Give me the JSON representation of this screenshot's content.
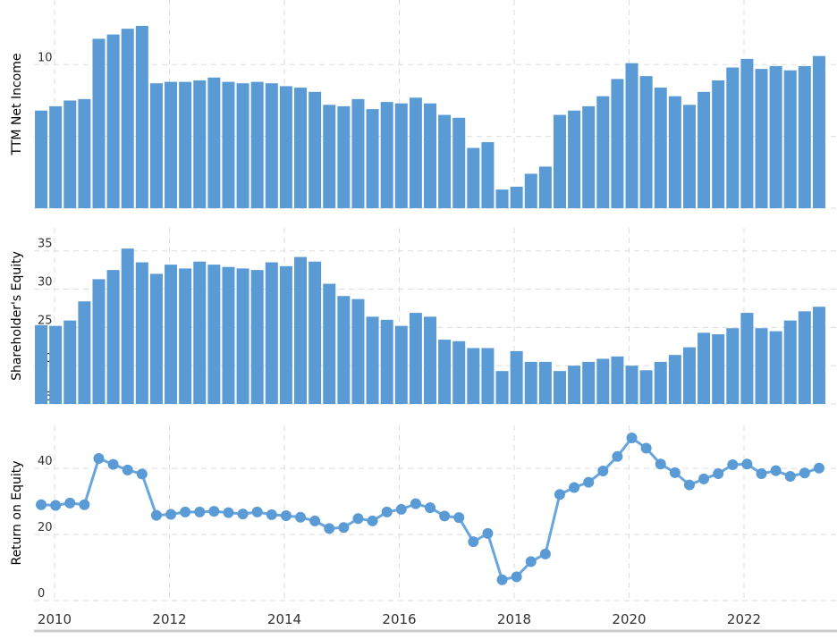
{
  "colors": {
    "bar": "#5b9bd5",
    "line": "#6aa6de",
    "grid": "#dddddd",
    "axis_text": "#333333",
    "bottom_rule": "#cccccc"
  },
  "x_axis": {
    "ticks": [
      "2010",
      "2012",
      "2014",
      "2016",
      "2018",
      "2020",
      "2022"
    ]
  },
  "chart_data": [
    {
      "type": "bar",
      "ylabel": "TTM Net Income",
      "ylim": [
        0,
        14.5
      ],
      "yticks": [
        0,
        5,
        10
      ],
      "grid": true,
      "x_start": "2010 Q1",
      "frequency": "quarterly",
      "values": [
        6.8,
        7.1,
        7.5,
        7.6,
        11.8,
        12.1,
        12.5,
        12.7,
        8.7,
        8.8,
        8.8,
        8.9,
        9.1,
        8.8,
        8.7,
        8.8,
        8.7,
        8.5,
        8.4,
        8.1,
        7.2,
        7.1,
        7.6,
        6.9,
        7.4,
        7.3,
        7.7,
        7.3,
        6.5,
        6.3,
        4.2,
        4.6,
        1.3,
        1.5,
        2.4,
        2.9,
        6.5,
        6.8,
        7.1,
        7.8,
        9.0,
        10.1,
        9.2,
        8.4,
        7.8,
        7.2,
        8.1,
        8.9,
        9.8,
        10.4,
        9.7,
        9.9,
        9.6,
        9.9,
        10.6
      ]
    },
    {
      "type": "bar",
      "ylabel": "Shareholder's Equity",
      "ylim": [
        15,
        38
      ],
      "yticks": [
        15,
        20,
        25,
        30,
        35
      ],
      "grid": true,
      "x_start": "2010 Q1",
      "frequency": "quarterly",
      "values": [
        25.3,
        25.2,
        25.9,
        28.4,
        31.3,
        32.5,
        35.3,
        33.5,
        32.0,
        33.2,
        32.7,
        33.6,
        33.2,
        32.9,
        32.7,
        32.5,
        33.5,
        33.0,
        34.2,
        33.6,
        30.7,
        29.1,
        28.7,
        26.4,
        26.0,
        25.2,
        26.9,
        26.4,
        23.4,
        23.2,
        22.3,
        22.3,
        19.3,
        21.9,
        20.5,
        20.5,
        19.3,
        20.0,
        20.5,
        20.9,
        21.2,
        20.0,
        19.4,
        20.5,
        21.4,
        22.4,
        24.3,
        24.1,
        24.9,
        26.9,
        24.9,
        24.5,
        25.9,
        27.1,
        27.7
      ]
    },
    {
      "type": "line",
      "ylabel": "Return on Equity",
      "ylim": [
        0,
        53
      ],
      "yticks": [
        0,
        20,
        40
      ],
      "grid": true,
      "x_start": "2010 Q1",
      "frequency": "quarterly",
      "values": [
        29.0,
        28.8,
        29.5,
        29.0,
        43.0,
        41.2,
        39.5,
        38.3,
        25.8,
        26.1,
        26.8,
        26.8,
        27.0,
        26.6,
        26.2,
        26.8,
        26.0,
        25.7,
        25.2,
        24.1,
        21.8,
        22.1,
        24.8,
        24.1,
        26.8,
        27.6,
        29.3,
        28.1,
        25.6,
        25.1,
        17.8,
        20.3,
        6.3,
        7.2,
        11.8,
        14.1,
        32.1,
        34.2,
        35.8,
        39.2,
        43.6,
        49.2,
        46.1,
        41.3,
        38.7,
        35.0,
        36.8,
        38.4,
        41.1,
        41.3,
        38.4,
        39.3,
        37.6,
        38.6,
        40.1
      ]
    }
  ]
}
